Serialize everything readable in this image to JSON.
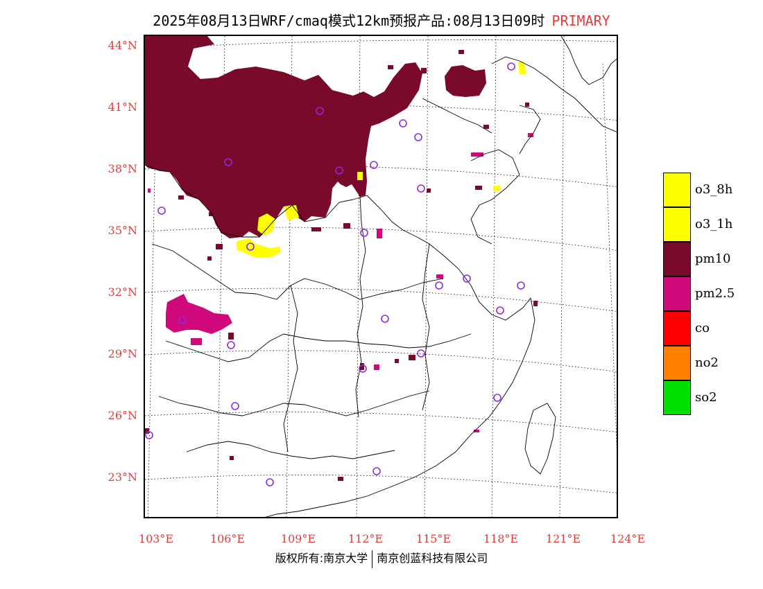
{
  "title": {
    "main": "2025年08月13日WRF/cmaq模式12km预报产品:08月13日09时",
    "tag": "PRIMARY"
  },
  "axes": {
    "lat_labels": [
      "44°N",
      "41°N",
      "38°N",
      "35°N",
      "32°N",
      "29°N",
      "26°N",
      "23°N"
    ],
    "lon_labels": [
      "103°E",
      "106°E",
      "109°E",
      "112°E",
      "115°E",
      "118°E",
      "121°E",
      "124°E"
    ]
  },
  "legend": [
    {
      "label": "o3_8h",
      "color": "#ffff00"
    },
    {
      "label": "o3_1h",
      "color": "#ffff00"
    },
    {
      "label": "pm10",
      "color": "#7a0a2a"
    },
    {
      "label": "pm2.5",
      "color": "#d1087a"
    },
    {
      "label": "co",
      "color": "#ff0000"
    },
    {
      "label": "no2",
      "color": "#ff7f00"
    },
    {
      "label": "so2",
      "color": "#00e000"
    }
  ],
  "footer": {
    "left": "版权所有:南京大学",
    "right": "南京创蓝科技有限公司"
  },
  "colors": {
    "pm10": "#7a0a2a",
    "pm25": "#d1087a",
    "o3": "#ffff00",
    "station": "#8a2be2",
    "label_red": "#e03c3c"
  }
}
